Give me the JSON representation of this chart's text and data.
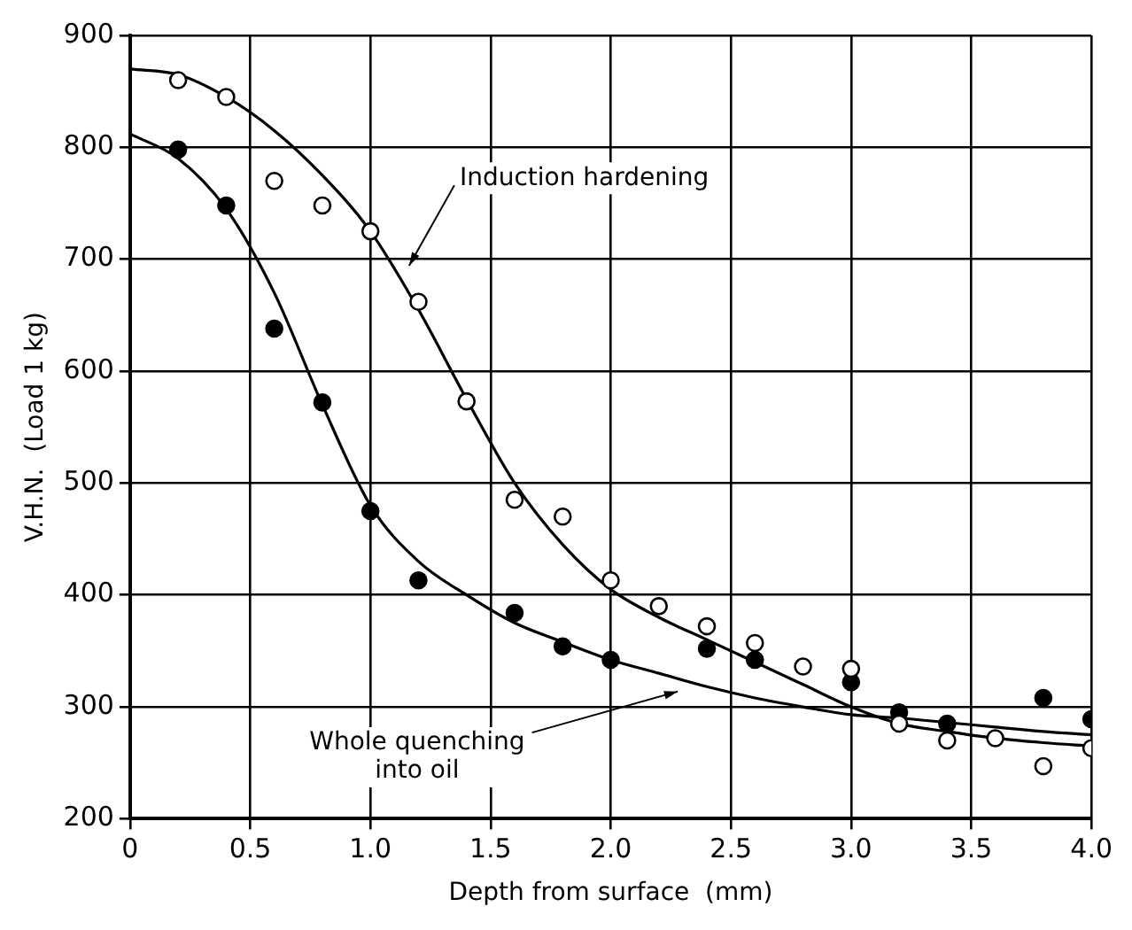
{
  "chart_data": {
    "type": "scatter",
    "xlabel": "Depth from surface  (mm)",
    "ylabel": "V.H.N.  (Load 1 kg)",
    "xlim": [
      0,
      4
    ],
    "xticks": [
      0,
      0.5,
      {
        "value": 1,
        "label": "1.0"
      },
      1.5,
      {
        "value": 2,
        "label": "2.0"
      },
      2.5,
      {
        "value": 3,
        "label": "3.0"
      },
      3.5,
      {
        "value": 4,
        "label": "4.0"
      }
    ],
    "ylim": [
      200,
      900
    ],
    "yticks": [
      200,
      300,
      400,
      500,
      600,
      700,
      800,
      900
    ],
    "grid": true,
    "legend": false,
    "marker": "circle",
    "series": [
      {
        "color": "#ffffff",
        "x": [
          0.2,
          0.4,
          0.6,
          0.8,
          1.0,
          1.2,
          1.4,
          1.6,
          1.8,
          2.0,
          2.2,
          2.4,
          2.6,
          2.8,
          3.0,
          3.2,
          3.4,
          3.6,
          3.8,
          4.0
        ],
        "values": [
          860,
          845,
          770,
          748,
          725,
          662,
          573,
          485,
          470,
          413,
          390,
          372,
          357,
          336,
          334,
          285,
          270,
          272,
          247,
          263
        ]
      },
      {
        "color": "#000000",
        "x": [
          0.2,
          0.4,
          0.6,
          0.8,
          1.0,
          1.2,
          1.6,
          1.8,
          2.0,
          2.4,
          2.6,
          3.0,
          3.2,
          3.4,
          3.8,
          4.0
        ],
        "values": [
          798,
          748,
          638,
          572,
          475,
          413,
          384,
          354,
          342,
          352,
          342,
          322,
          295,
          285,
          308,
          289
        ]
      },
      {
        "type": "line",
        "marker": "none",
        "color": "#000000",
        "x": [
          0,
          0.2,
          0.4,
          0.6,
          0.8,
          1.0,
          1.2,
          1.4,
          1.6,
          1.8,
          2.0,
          2.2,
          2.4,
          2.6,
          2.8,
          3.0,
          3.2,
          3.4,
          3.6,
          3.8,
          4.0
        ],
        "values": [
          870,
          865,
          845,
          815,
          775,
          725,
          655,
          575,
          500,
          445,
          405,
          380,
          360,
          340,
          320,
          300,
          285,
          278,
          272,
          268,
          265
        ]
      },
      {
        "type": "line",
        "marker": "none",
        "color": "#000000",
        "x": [
          0,
          0.2,
          0.4,
          0.6,
          0.8,
          1.0,
          1.2,
          1.4,
          1.6,
          1.8,
          2.0,
          2.2,
          2.4,
          2.6,
          2.8,
          3.0,
          3.2,
          3.4,
          3.6,
          3.8,
          4.0
        ],
        "values": [
          812,
          790,
          745,
          670,
          570,
          480,
          430,
          400,
          375,
          358,
          342,
          330,
          318,
          308,
          300,
          293,
          290,
          286,
          282,
          278,
          275
        ]
      }
    ],
    "annotations": [
      {
        "text": "Induction hardening",
        "x": 1.15,
        "y": 690
      },
      {
        "text": "Whole quenching\ninto oil",
        "x": 2.3,
        "y": 315
      }
    ]
  }
}
